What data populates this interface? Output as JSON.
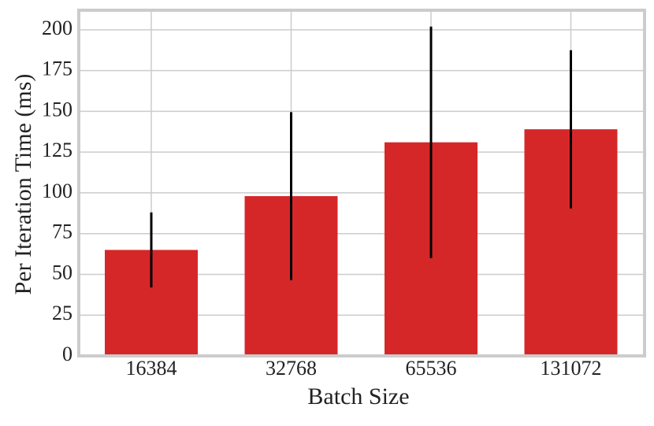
{
  "chart_data": {
    "type": "bar",
    "x_label": "Batch Size",
    "y_label": "Per Iteration Time (ms)",
    "categories": [
      "16384",
      "32768",
      "65536",
      "131072"
    ],
    "values": [
      65,
      98,
      131,
      139
    ],
    "errors": [
      23,
      51.5,
      71,
      48.5
    ],
    "color": "#d62728",
    "error_color": "#000000",
    "ylim": [
      0,
      212
    ],
    "yticks": [
      0,
      25,
      50,
      75,
      100,
      125,
      150,
      175,
      200
    ],
    "grid": true
  }
}
